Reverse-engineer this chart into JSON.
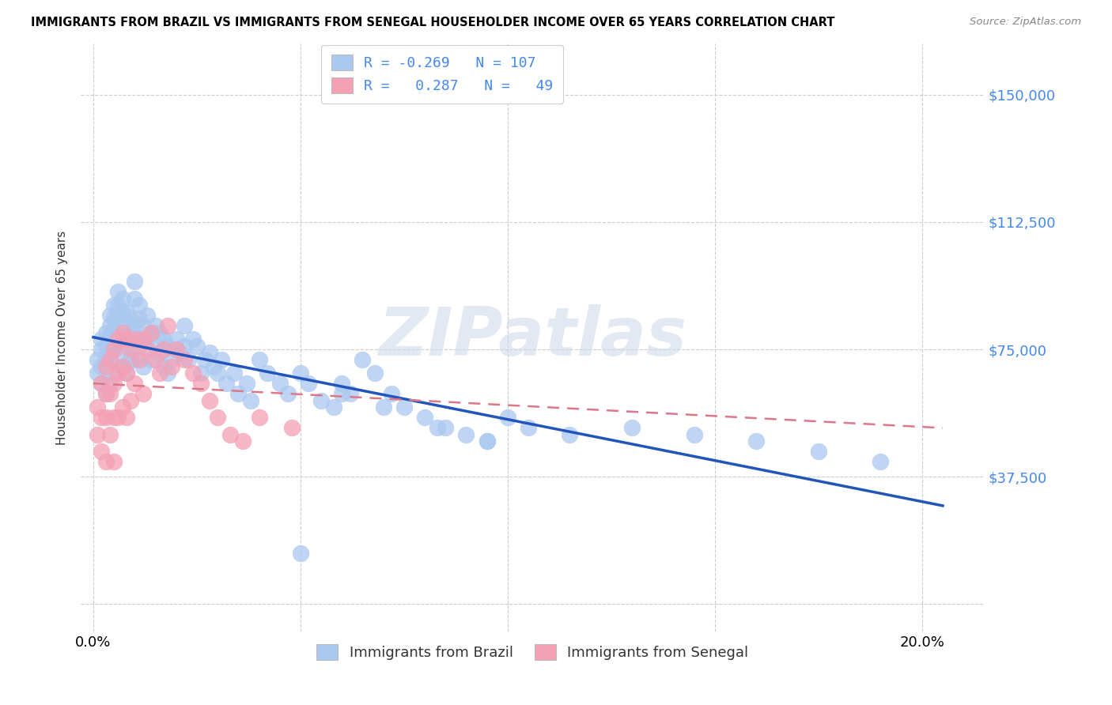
{
  "title": "IMMIGRANTS FROM BRAZIL VS IMMIGRANTS FROM SENEGAL HOUSEHOLDER INCOME OVER 65 YEARS CORRELATION CHART",
  "source": "Source: ZipAtlas.com",
  "ylabel_label": "Householder Income Over 65 years",
  "xlim": [
    -0.003,
    0.215
  ],
  "ylim": [
    -8000,
    165000
  ],
  "ytick_vals": [
    0,
    37500,
    75000,
    112500,
    150000
  ],
  "ytick_labels_right": [
    "",
    "$37,500",
    "$75,000",
    "$112,500",
    "$150,000"
  ],
  "xtick_vals": [
    0.0,
    0.05,
    0.1,
    0.15,
    0.2
  ],
  "xtick_labels": [
    "0.0%",
    "",
    "",
    "",
    "20.0%"
  ],
  "brazil_R": -0.269,
  "brazil_N": 107,
  "senegal_R": 0.287,
  "senegal_N": 49,
  "brazil_color": "#aac8f0",
  "senegal_color": "#f4a0b5",
  "brazil_line_color": "#2255bb",
  "senegal_line_color": "#dd7788",
  "watermark": "ZIPatlas",
  "legend1_brazil_label": "R = -0.269   N = 107",
  "legend1_senegal_label": "R =  0.287   N =  49",
  "legend2_brazil_label": "Immigrants from Brazil",
  "legend2_senegal_label": "Immigrants from Senegal",
  "brazil_x": [
    0.001,
    0.001,
    0.002,
    0.002,
    0.002,
    0.002,
    0.003,
    0.003,
    0.003,
    0.003,
    0.004,
    0.004,
    0.004,
    0.004,
    0.004,
    0.005,
    0.005,
    0.005,
    0.005,
    0.005,
    0.006,
    0.006,
    0.006,
    0.006,
    0.007,
    0.007,
    0.007,
    0.007,
    0.008,
    0.008,
    0.008,
    0.008,
    0.009,
    0.009,
    0.009,
    0.01,
    0.01,
    0.01,
    0.01,
    0.011,
    0.011,
    0.011,
    0.012,
    0.012,
    0.012,
    0.013,
    0.013,
    0.014,
    0.014,
    0.015,
    0.015,
    0.016,
    0.016,
    0.017,
    0.017,
    0.018,
    0.018,
    0.019,
    0.02,
    0.021,
    0.022,
    0.022,
    0.023,
    0.024,
    0.025,
    0.026,
    0.027,
    0.028,
    0.029,
    0.03,
    0.031,
    0.032,
    0.034,
    0.035,
    0.037,
    0.038,
    0.04,
    0.042,
    0.045,
    0.047,
    0.05,
    0.052,
    0.055,
    0.058,
    0.06,
    0.062,
    0.065,
    0.068,
    0.072,
    0.075,
    0.08,
    0.085,
    0.09,
    0.095,
    0.1,
    0.105,
    0.115,
    0.13,
    0.145,
    0.16,
    0.175,
    0.19,
    0.05,
    0.06,
    0.07,
    0.083,
    0.095
  ],
  "brazil_y": [
    72000,
    68000,
    78000,
    75000,
    70000,
    65000,
    80000,
    76000,
    72000,
    62000,
    85000,
    82000,
    78000,
    74000,
    65000,
    88000,
    84000,
    80000,
    76000,
    68000,
    92000,
    88000,
    84000,
    72000,
    90000,
    86000,
    78000,
    70000,
    86000,
    82000,
    76000,
    68000,
    84000,
    80000,
    72000,
    95000,
    90000,
    82000,
    72000,
    88000,
    84000,
    76000,
    82000,
    78000,
    70000,
    85000,
    78000,
    80000,
    72000,
    82000,
    76000,
    80000,
    74000,
    78000,
    70000,
    76000,
    68000,
    72000,
    78000,
    74000,
    82000,
    76000,
    72000,
    78000,
    76000,
    68000,
    72000,
    74000,
    70000,
    68000,
    72000,
    65000,
    68000,
    62000,
    65000,
    60000,
    72000,
    68000,
    65000,
    62000,
    68000,
    65000,
    60000,
    58000,
    65000,
    62000,
    72000,
    68000,
    62000,
    58000,
    55000,
    52000,
    50000,
    48000,
    55000,
    52000,
    50000,
    52000,
    50000,
    48000,
    45000,
    42000,
    15000,
    62000,
    58000,
    52000,
    48000
  ],
  "senegal_x": [
    0.001,
    0.001,
    0.002,
    0.002,
    0.002,
    0.003,
    0.003,
    0.003,
    0.003,
    0.004,
    0.004,
    0.004,
    0.005,
    0.005,
    0.005,
    0.005,
    0.006,
    0.006,
    0.006,
    0.007,
    0.007,
    0.007,
    0.008,
    0.008,
    0.008,
    0.009,
    0.009,
    0.01,
    0.01,
    0.011,
    0.012,
    0.012,
    0.013,
    0.014,
    0.015,
    0.016,
    0.017,
    0.018,
    0.019,
    0.02,
    0.022,
    0.024,
    0.026,
    0.028,
    0.03,
    0.033,
    0.036,
    0.04,
    0.048
  ],
  "senegal_y": [
    58000,
    50000,
    65000,
    55000,
    45000,
    70000,
    62000,
    55000,
    42000,
    72000,
    62000,
    50000,
    75000,
    65000,
    55000,
    42000,
    78000,
    68000,
    55000,
    80000,
    70000,
    58000,
    78000,
    68000,
    55000,
    75000,
    60000,
    78000,
    65000,
    72000,
    78000,
    62000,
    75000,
    80000,
    72000,
    68000,
    75000,
    82000,
    70000,
    75000,
    72000,
    68000,
    65000,
    60000,
    55000,
    50000,
    48000,
    55000,
    52000
  ]
}
